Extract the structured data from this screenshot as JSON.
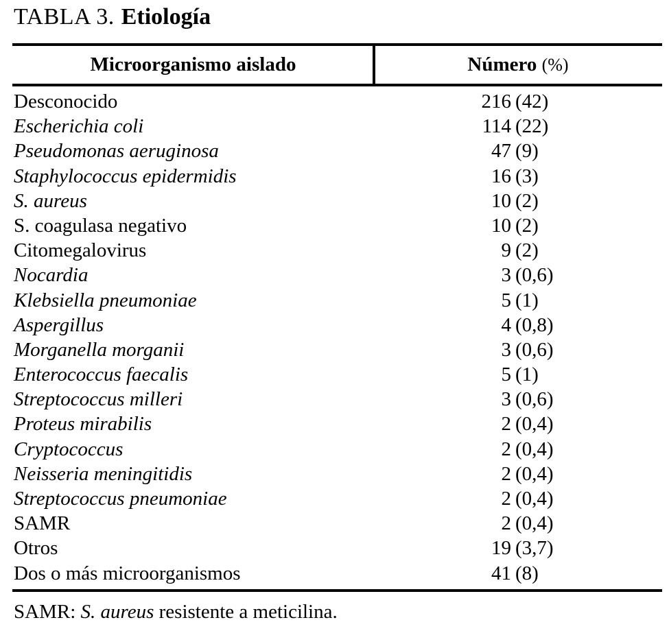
{
  "colors": {
    "background": "#ffffff",
    "text": "#000000",
    "rule": "#000000"
  },
  "caption": {
    "label": "TABLA 3.",
    "name": "Etiología"
  },
  "table": {
    "columns": [
      "Microorganismo aislado",
      "Número (%)"
    ],
    "header": {
      "col1": "Microorganismo aislado",
      "col2_bold": "Número",
      "col2_unit": "(%)"
    },
    "rows": [
      {
        "organism": "Desconocido",
        "italic": false,
        "count": "216",
        "pct": "(42)"
      },
      {
        "organism": "Escherichia coli",
        "italic": true,
        "count": "114",
        "pct": "(22)"
      },
      {
        "organism": "Pseudomonas aeruginosa",
        "italic": true,
        "count": "47",
        "pct": "(9)"
      },
      {
        "organism": "Staphylococcus epidermidis",
        "italic": true,
        "count": "16",
        "pct": "(3)"
      },
      {
        "organism": "S. aureus",
        "italic": true,
        "count": "10",
        "pct": "(2)"
      },
      {
        "organism": "S. coagulasa negativo",
        "italic": false,
        "count": "10",
        "pct": "(2)"
      },
      {
        "organism": "Citomegalovirus",
        "italic": false,
        "count": "9",
        "pct": "(2)"
      },
      {
        "organism": "Nocardia",
        "italic": true,
        "count": "3",
        "pct": "(0,6)"
      },
      {
        "organism": "Klebsiella pneumoniae",
        "italic": true,
        "count": "5",
        "pct": "(1)"
      },
      {
        "organism": "Aspergillus",
        "italic": true,
        "count": "4",
        "pct": "(0,8)"
      },
      {
        "organism": "Morganella morganii",
        "italic": true,
        "count": "3",
        "pct": "(0,6)"
      },
      {
        "organism": "Enterococcus faecalis",
        "italic": true,
        "count": "5",
        "pct": "(1)"
      },
      {
        "organism": "Streptococcus milleri",
        "italic": true,
        "count": "3",
        "pct": "(0,6)"
      },
      {
        "organism": "Proteus mirabilis",
        "italic": true,
        "count": "2",
        "pct": "(0,4)"
      },
      {
        "organism": "Cryptococcus",
        "italic": true,
        "count": "2",
        "pct": "(0,4)"
      },
      {
        "organism": "Neisseria meningitidis",
        "italic": true,
        "count": "2",
        "pct": "(0,4)"
      },
      {
        "organism": "Streptococcus pneumoniae",
        "italic": true,
        "count": "2",
        "pct": "(0,4)"
      },
      {
        "organism": "SAMR",
        "italic": false,
        "count": "2",
        "pct": "(0,4)"
      },
      {
        "organism": "Otros",
        "italic": false,
        "count": "19",
        "pct": "(3,7)"
      },
      {
        "organism": "Dos o más microorganismos",
        "italic": false,
        "count": "41",
        "pct": "(8)"
      }
    ]
  },
  "footnote": {
    "prefix": "SAMR: ",
    "italic_text": "S. aureus",
    "suffix": " resistente a meticilina."
  }
}
